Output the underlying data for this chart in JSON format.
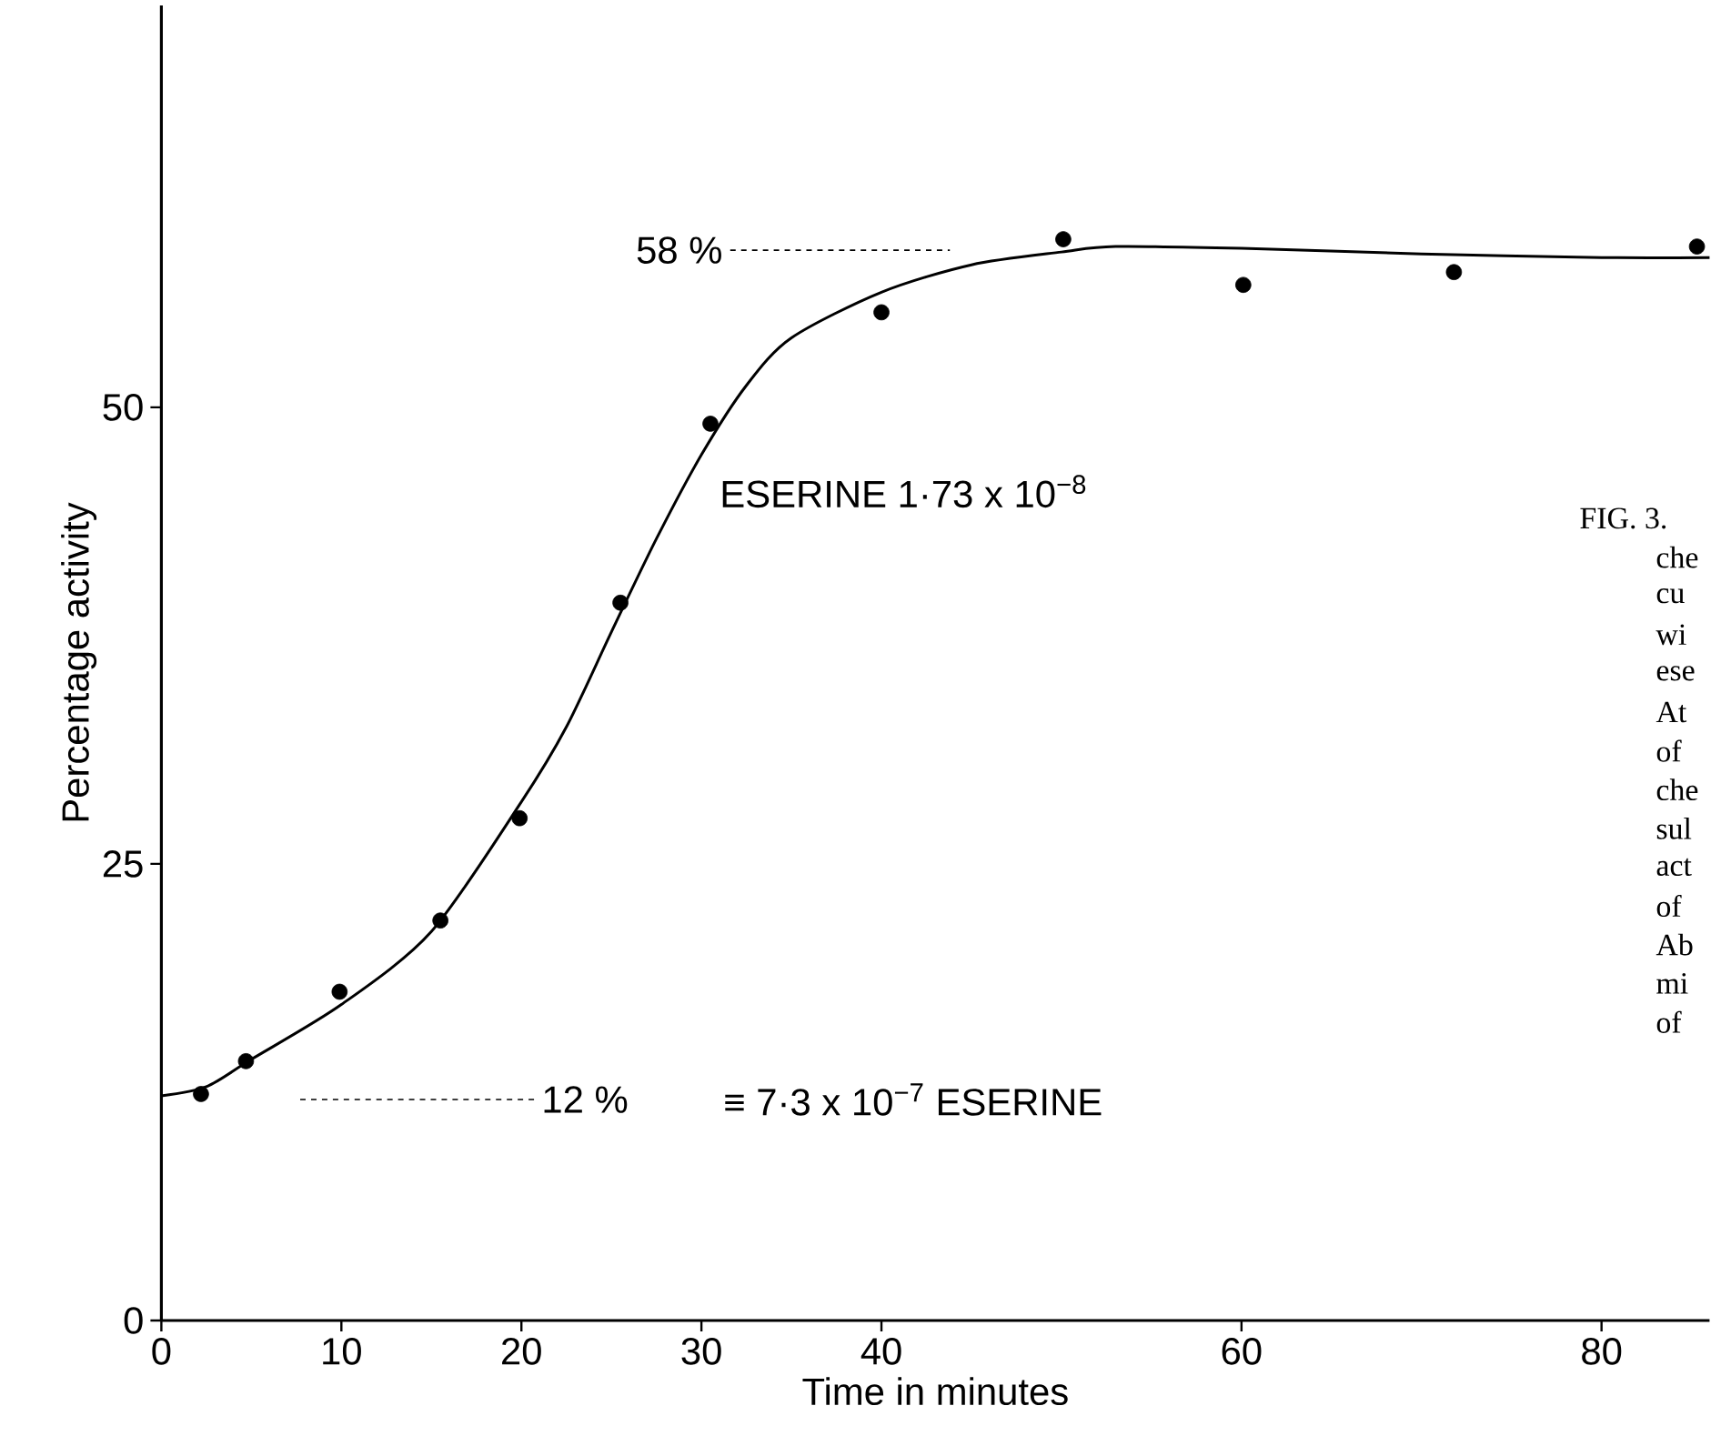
{
  "chart_data": {
    "type": "line",
    "xlabel": "Time in minutes",
    "ylabel": "Percentage activity",
    "xlim": [
      0,
      86
    ],
    "ylim": [
      0,
      72
    ],
    "xticks": [
      0,
      10,
      20,
      30,
      40,
      60,
      80
    ],
    "yticks": [
      0,
      25,
      50
    ],
    "grid": false,
    "series": [
      {
        "type": "scatter",
        "marker": "circle",
        "color": "#000000",
        "x": [
          2.2,
          4.7,
          9.9,
          15.5,
          19.9,
          25.5,
          30.5,
          40,
          50.1,
          60.1,
          71.8,
          85.3
        ],
        "values": [
          12.4,
          14.2,
          18.0,
          21.9,
          27.5,
          39.3,
          49.1,
          55.2,
          59.2,
          56.7,
          57.4,
          58.8
        ]
      },
      {
        "marker": "none",
        "line_style": "solid",
        "color": "#000000",
        "x": [
          0,
          2.5,
          5,
          10,
          15,
          20,
          22.5,
          25,
          27.5,
          30,
          32.5,
          35,
          40,
          45,
          50,
          53,
          60,
          70,
          80,
          86
        ],
        "values": [
          12.3,
          12.8,
          14.3,
          17.3,
          21.3,
          28.4,
          32.5,
          37.7,
          42.8,
          47.4,
          51.2,
          53.8,
          56.3,
          57.8,
          58.5,
          58.8,
          58.7,
          58.4,
          58.2,
          58.2
        ]
      }
    ],
    "annotations": [
      "58 %",
      "12 %",
      "ESERINE 1·73 x 10$^{−8}$",
      "≡ 7·3 x 10$^{−7}$ ESERINE",
      "FIG. 3.",
      "che",
      "cu",
      "wi",
      "ese",
      "At",
      "of",
      "che",
      "sul",
      "act",
      "of",
      "Ab",
      "mi",
      "of"
    ]
  }
}
